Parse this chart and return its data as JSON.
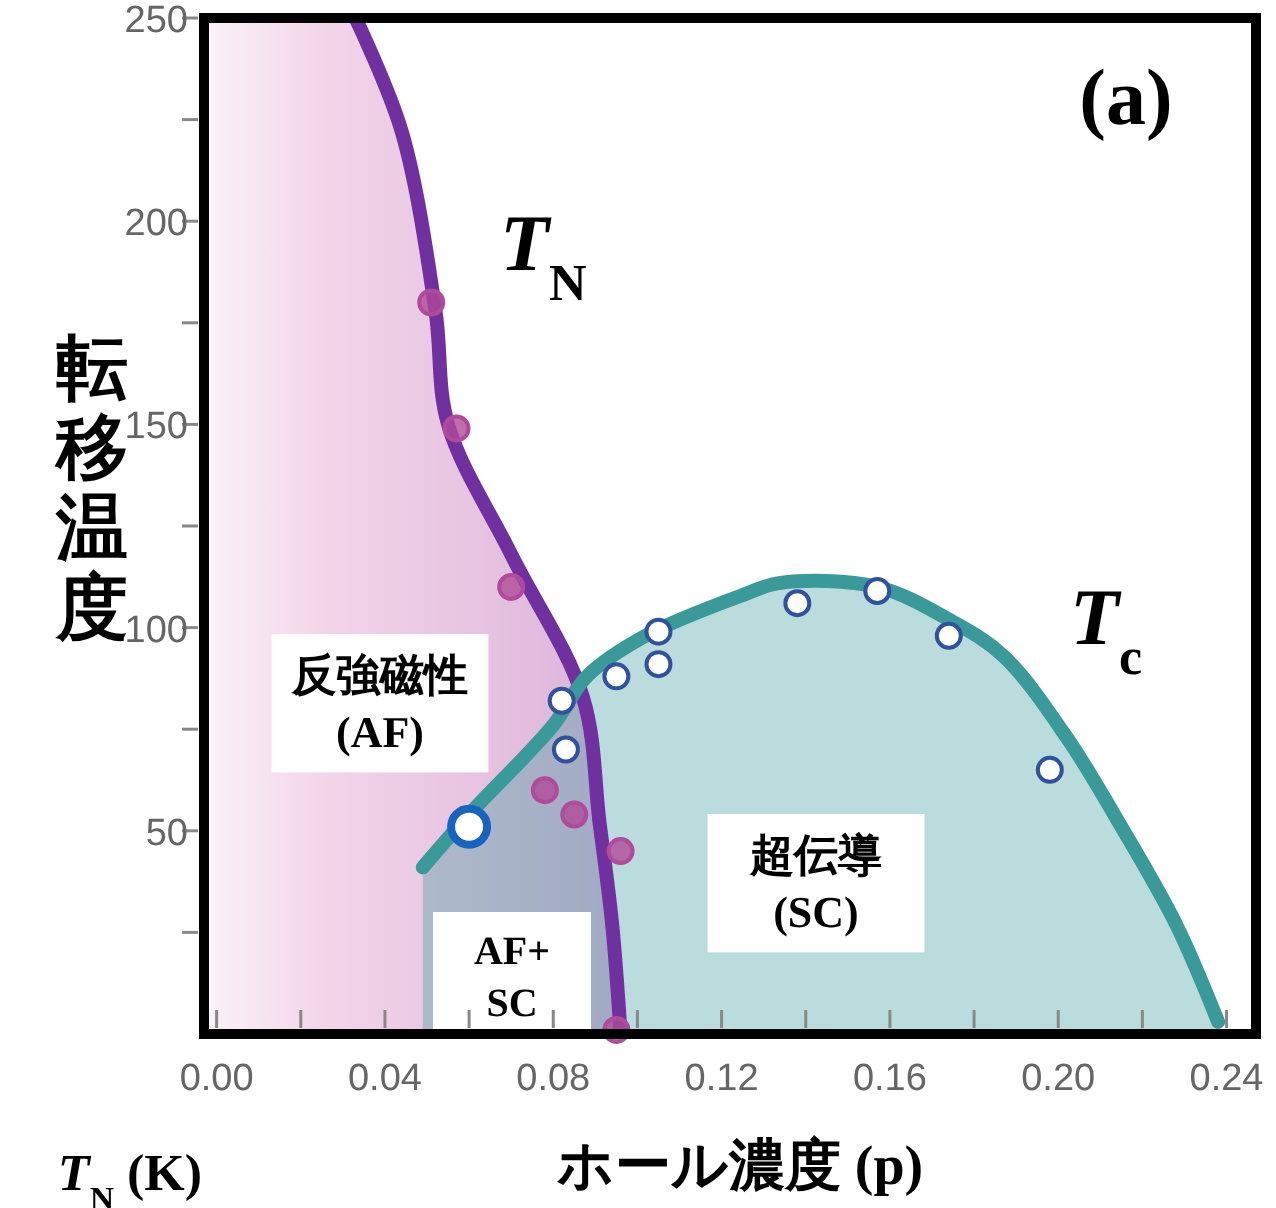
{
  "chart_data": {
    "type": "line",
    "xlabel": "ホール濃度 (p)",
    "ylabel": "転移温度",
    "xlim": [
      -0.003,
      0.247
    ],
    "ylim": [
      0,
      250
    ],
    "xticks": [
      {
        "value": 0,
        "label": "0.00"
      },
      {
        "value": 0.02,
        "label": null
      },
      {
        "value": 0.04,
        "label": "0.04"
      },
      {
        "value": 0.06,
        "label": null
      },
      {
        "value": 0.08,
        "label": "0.08"
      },
      {
        "value": 0.1,
        "label": null
      },
      {
        "value": 0.12,
        "label": "0.12"
      },
      {
        "value": 0.14,
        "label": null
      },
      {
        "value": 0.16,
        "label": "0.16"
      },
      {
        "value": 0.18,
        "label": null
      },
      {
        "value": 0.2,
        "label": "0.20"
      },
      {
        "value": 0.22,
        "label": null
      },
      {
        "value": 0.24,
        "label": "0.24"
      }
    ],
    "yticks": [
      {
        "value": 25,
        "label": null
      },
      50,
      {
        "value": 75,
        "label": null
      },
      100,
      {
        "value": 125,
        "label": null
      },
      150,
      {
        "value": 175,
        "label": null
      },
      200,
      {
        "value": 225,
        "label": null
      },
      250
    ],
    "grid": false,
    "series": [
      {
        "name": "T$_{N}$",
        "color": "#7030a0",
        "x": [
          0.033,
          0.044,
          0.052,
          0.055,
          0.07,
          0.087,
          0.091,
          0.094,
          0.096
        ],
        "values": [
          250,
          222,
          178,
          150,
          118,
          83,
          52,
          27,
          0
        ]
      },
      {
        "name": "T$_{c}$",
        "type": "area",
        "color": "#3a9a9a",
        "x": [
          0.049,
          0.06,
          0.08,
          0.088,
          0.102,
          0.125,
          0.134,
          0.157,
          0.174,
          0.187,
          0.202,
          0.215,
          0.228,
          0.238
        ],
        "values": [
          41,
          54,
          76,
          88,
          98,
          108,
          111,
          110,
          102,
          93,
          73,
          51,
          27,
          3
        ]
      },
      {
        "type": "scatter",
        "color": "#b04a9a",
        "marker": "circle",
        "x": [
          0.051,
          0.057,
          0.07,
          0.078,
          0.085,
          0.096,
          0.095
        ],
        "values": [
          180,
          149,
          110,
          60,
          54,
          45,
          1
        ]
      },
      {
        "type": "scatter",
        "color": "#3050a0",
        "marker": "circle",
        "x": [
          0.082,
          0.083,
          0.095,
          0.105,
          0.105,
          0.138,
          0.157,
          0.174,
          0.198
        ],
        "values": [
          82,
          70,
          88,
          99,
          91,
          106,
          109,
          98,
          65
        ]
      },
      {
        "type": "scatter",
        "color": "#1565c0",
        "marker": "circle",
        "x": [
          0.06
        ],
        "values": [
          51
        ]
      }
    ],
    "annotations": [
      "(a)",
      "反強磁性\n(AF)",
      "超伝導\n(SC)",
      "AF+\nSC",
      "T$_{N}$ (K)"
    ]
  }
}
